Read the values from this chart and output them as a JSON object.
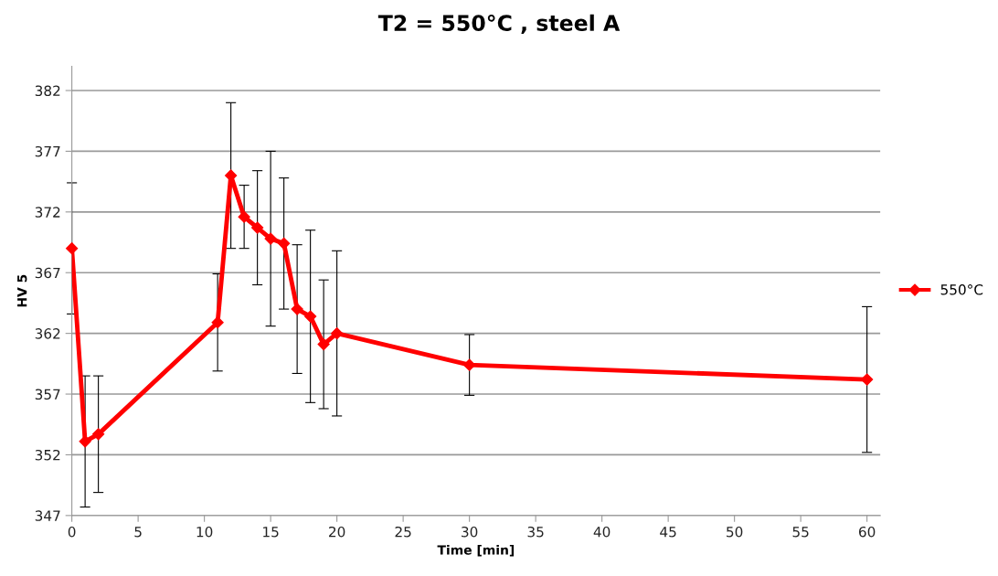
{
  "chart_data": {
    "type": "line",
    "title": "T2 = 550°C , steel A",
    "xlabel": "Time [min]",
    "ylabel": "HV 5",
    "x": [
      0,
      1,
      2,
      11,
      12,
      13,
      14,
      15,
      16,
      17,
      18,
      19,
      20,
      30,
      60
    ],
    "series": [
      {
        "name": "550°C",
        "color": "#ff0000",
        "values": [
          369.0,
          353.1,
          353.7,
          362.9,
          375.0,
          371.6,
          370.7,
          369.8,
          369.4,
          364.0,
          363.4,
          361.1,
          362.0,
          359.4,
          358.2
        ],
        "errors": [
          5.4,
          5.4,
          4.8,
          4.0,
          6.0,
          2.6,
          4.7,
          7.2,
          5.4,
          5.3,
          7.1,
          5.3,
          6.8,
          2.5,
          6.0
        ]
      }
    ],
    "xlim": [
      0,
      61
    ],
    "xticks": [
      0,
      5,
      10,
      15,
      20,
      25,
      30,
      35,
      40,
      45,
      50,
      55,
      60
    ],
    "ylim": [
      347,
      384
    ],
    "yticks": [
      347,
      352,
      357,
      362,
      367,
      372,
      377,
      382
    ],
    "grid": "y",
    "legend": "right",
    "marker": "diamond",
    "line_style": "solid"
  }
}
